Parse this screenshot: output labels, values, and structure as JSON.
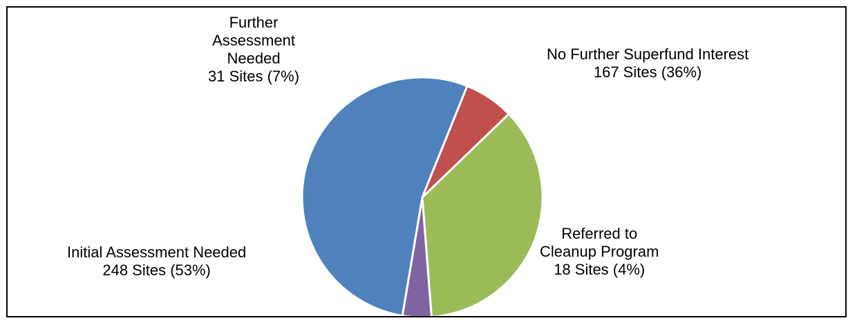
{
  "chart_data": {
    "type": "pie",
    "title": "",
    "slices": [
      {
        "label": "No Further Superfund Interest",
        "value": 167,
        "percent": 36,
        "value_text": "167 Sites (36%)",
        "color": "#9bbb59"
      },
      {
        "label": "Referred to Cleanup Program",
        "value": 18,
        "percent": 4,
        "value_text": "18 Sites (4%)",
        "color": "#8064a2"
      },
      {
        "label": "Initial Assessment Needed",
        "value": 248,
        "percent": 53,
        "value_text": "248 Sites (53%)",
        "color": "#4f81bd"
      },
      {
        "label": "Further Assessment Needed",
        "value": 31,
        "percent": 7,
        "value_text": "31 Sites (7%)",
        "color": "#c0504d"
      }
    ],
    "label_lines": {
      "no_further": [
        "No Further Superfund Interest",
        "167 Sites (36%)"
      ],
      "referred": [
        "Referred to",
        "Cleanup Program",
        "18 Sites (4%)"
      ],
      "initial": [
        "Initial Assessment Needed",
        "248 Sites (53%)"
      ],
      "further": [
        "Further",
        "Assessment",
        "Needed",
        "31 Sites (7%)"
      ]
    }
  }
}
